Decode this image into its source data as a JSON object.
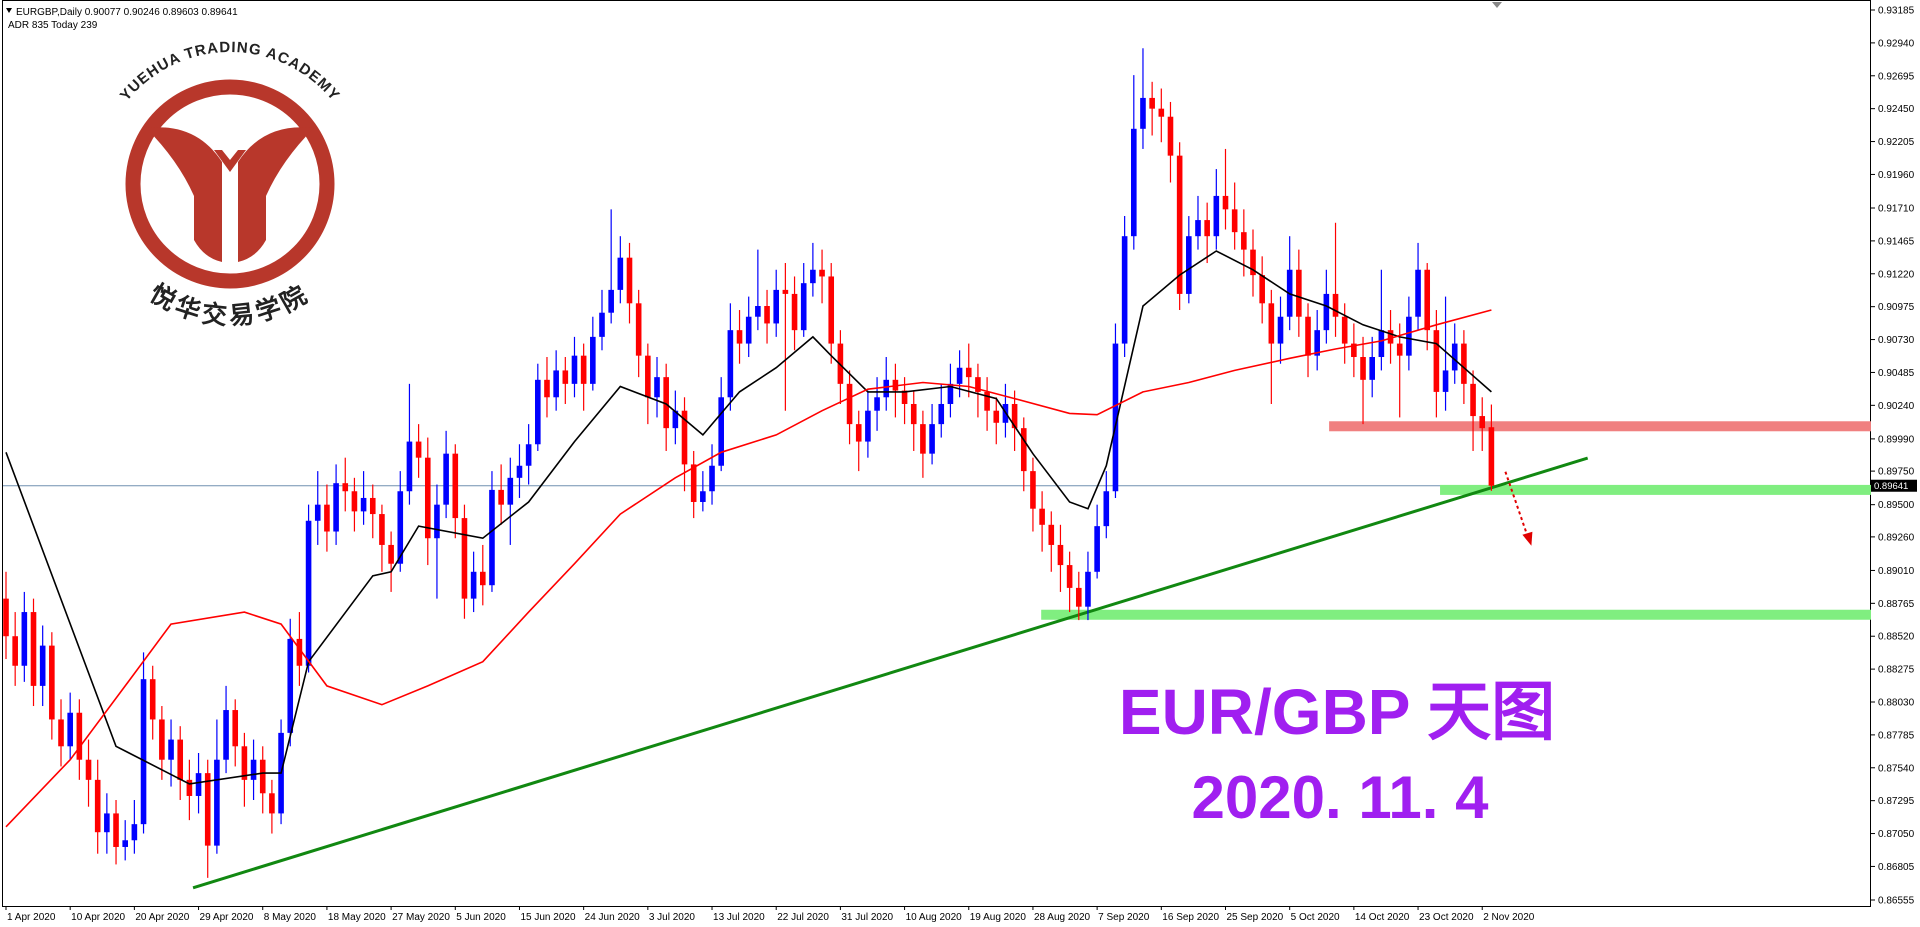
{
  "chart_data": {
    "type": "candlestick",
    "header": "EURGBP,Daily 0.90077 0.90246 0.89603 0.89641",
    "subheader": "ADR 835  Today 239",
    "title": "EUR/GBP 天图",
    "subtitle": "2020. 11. 4",
    "logo": {
      "name_en": "YUEHUA TRADING ACADEMY",
      "name_cn": "悦华交易学院"
    },
    "up_color": "#0000ff",
    "down_color": "#ff0000",
    "xlim": [
      0,
      203.4
    ],
    "ylim": [
      0.86555,
      0.93185
    ],
    "xticks": [
      {
        "value": 0,
        "label": "1 Apr 2020"
      },
      {
        "value": 7,
        "label": "10 Apr 2020"
      },
      {
        "value": 14,
        "label": "20 Apr 2020"
      },
      {
        "value": 21,
        "label": "29 Apr 2020"
      },
      {
        "value": 28,
        "label": "8 May 2020"
      },
      {
        "value": 35,
        "label": "18 May 2020"
      },
      {
        "value": 42,
        "label": "27 May 2020"
      },
      {
        "value": 49,
        "label": "5 Jun 2020"
      },
      {
        "value": 56,
        "label": "15 Jun 2020"
      },
      {
        "value": 63,
        "label": "24 Jun 2020"
      },
      {
        "value": 70,
        "label": "3 Jul 2020"
      },
      {
        "value": 77,
        "label": "13 Jul 2020"
      },
      {
        "value": 84,
        "label": "22 Jul 2020"
      },
      {
        "value": 91,
        "label": "31 Jul 2020"
      },
      {
        "value": 98,
        "label": "10 Aug 2020"
      },
      {
        "value": 105,
        "label": "19 Aug 2020"
      },
      {
        "value": 112,
        "label": "28 Aug 2020"
      },
      {
        "value": 119,
        "label": "7 Sep 2020"
      },
      {
        "value": 126,
        "label": "16 Sep 2020"
      },
      {
        "value": 133,
        "label": "25 Sep 2020"
      },
      {
        "value": 140,
        "label": "5 Oct 2020"
      },
      {
        "value": 147,
        "label": "14 Oct 2020"
      },
      {
        "value": 154,
        "label": "23 Oct 2020"
      },
      {
        "value": 161,
        "label": "2 Nov 2020"
      }
    ],
    "yticks": [
      0.93185,
      {
        "value": 0.9294,
        "label": "0.92940"
      },
      0.92695,
      {
        "value": 0.9245,
        "label": "0.92450"
      },
      0.92205,
      {
        "value": 0.9196,
        "label": "0.91960"
      },
      {
        "value": 0.9171,
        "label": "0.91710"
      },
      0.91465,
      {
        "value": 0.9122,
        "label": "0.91220"
      },
      0.90975,
      {
        "value": 0.9073,
        "label": "0.90730"
      },
      0.90485,
      {
        "value": 0.9024,
        "label": "0.90240"
      },
      {
        "value": 0.8999,
        "label": "0.89990"
      },
      {
        "value": 0.8975,
        "label": "0.89750"
      },
      {
        "value": 0.895,
        "label": "0.89500"
      },
      {
        "value": 0.8926,
        "label": "0.89260"
      },
      {
        "value": 0.8901,
        "label": "0.89010"
      },
      0.88765,
      {
        "value": 0.8852,
        "label": "0.88520"
      },
      0.88275,
      {
        "value": 0.8803,
        "label": "0.88030"
      },
      0.87785,
      {
        "value": 0.8754,
        "label": "0.87540"
      },
      0.87295,
      {
        "value": 0.8705,
        "label": "0.87050"
      },
      0.86805,
      0.86555
    ],
    "candles": [
      [
        0.888,
        0.89,
        0.8835,
        0.8852
      ],
      [
        0.8852,
        0.887,
        0.8815,
        0.883
      ],
      [
        0.883,
        0.8885,
        0.8818,
        0.887
      ],
      [
        0.887,
        0.888,
        0.88,
        0.8815
      ],
      [
        0.8815,
        0.886,
        0.88,
        0.8845
      ],
      [
        0.8845,
        0.8855,
        0.8775,
        0.879
      ],
      [
        0.879,
        0.8805,
        0.8755,
        0.877
      ],
      [
        0.877,
        0.881,
        0.876,
        0.8795
      ],
      [
        0.8795,
        0.8805,
        0.8745,
        0.876
      ],
      [
        0.876,
        0.8775,
        0.8725,
        0.8745
      ],
      [
        0.8745,
        0.876,
        0.869,
        0.8706
      ],
      [
        0.8706,
        0.8735,
        0.869,
        0.872
      ],
      [
        0.872,
        0.873,
        0.8682,
        0.8695
      ],
      [
        0.8695,
        0.8715,
        0.8685,
        0.87
      ],
      [
        0.87,
        0.873,
        0.869,
        0.8712
      ],
      [
        0.8712,
        0.884,
        0.8705,
        0.882
      ],
      [
        0.882,
        0.883,
        0.8775,
        0.879
      ],
      [
        0.879,
        0.88,
        0.8745,
        0.876
      ],
      [
        0.876,
        0.879,
        0.874,
        0.8775
      ],
      [
        0.8775,
        0.8785,
        0.873,
        0.8745
      ],
      [
        0.8745,
        0.876,
        0.8715,
        0.8733
      ],
      [
        0.8733,
        0.8765,
        0.872,
        0.875
      ],
      [
        0.875,
        0.876,
        0.8672,
        0.8696
      ],
      [
        0.8696,
        0.879,
        0.869,
        0.876
      ],
      [
        0.876,
        0.8815,
        0.875,
        0.8797
      ],
      [
        0.8797,
        0.8805,
        0.8755,
        0.877
      ],
      [
        0.877,
        0.878,
        0.8725,
        0.8745
      ],
      [
        0.8745,
        0.8775,
        0.873,
        0.876
      ],
      [
        0.876,
        0.877,
        0.872,
        0.8735
      ],
      [
        0.8735,
        0.8745,
        0.8705,
        0.872
      ],
      [
        0.872,
        0.879,
        0.8712,
        0.878
      ],
      [
        0.878,
        0.8865,
        0.877,
        0.885
      ],
      [
        0.885,
        0.887,
        0.8815,
        0.883
      ],
      [
        0.883,
        0.895,
        0.8825,
        0.8938
      ],
      [
        0.8938,
        0.8975,
        0.892,
        0.895
      ],
      [
        0.895,
        0.8965,
        0.8915,
        0.893
      ],
      [
        0.893,
        0.898,
        0.892,
        0.8966
      ],
      [
        0.8966,
        0.8985,
        0.8945,
        0.896
      ],
      [
        0.896,
        0.897,
        0.893,
        0.8945
      ],
      [
        0.8945,
        0.8975,
        0.8935,
        0.8955
      ],
      [
        0.8955,
        0.8965,
        0.8925,
        0.8943
      ],
      [
        0.8943,
        0.895,
        0.89,
        0.892
      ],
      [
        0.892,
        0.893,
        0.8885,
        0.8906
      ],
      [
        0.8906,
        0.8975,
        0.89,
        0.896
      ],
      [
        0.896,
        0.904,
        0.895,
        0.8997
      ],
      [
        0.8997,
        0.901,
        0.897,
        0.8985
      ],
      [
        0.8985,
        0.9,
        0.8905,
        0.8925
      ],
      [
        0.8925,
        0.8965,
        0.888,
        0.895
      ],
      [
        0.895,
        0.9005,
        0.894,
        0.8988
      ],
      [
        0.8988,
        0.8995,
        0.8925,
        0.894
      ],
      [
        0.894,
        0.895,
        0.8865,
        0.888
      ],
      [
        0.888,
        0.8915,
        0.887,
        0.89
      ],
      [
        0.89,
        0.892,
        0.8875,
        0.889
      ],
      [
        0.889,
        0.8975,
        0.8885,
        0.8961
      ],
      [
        0.8961,
        0.898,
        0.8935,
        0.895
      ],
      [
        0.895,
        0.8985,
        0.892,
        0.897
      ],
      [
        0.897,
        0.8995,
        0.8955,
        0.8979
      ],
      [
        0.8979,
        0.901,
        0.8965,
        0.8995
      ],
      [
        0.8995,
        0.9055,
        0.899,
        0.9043
      ],
      [
        0.9043,
        0.906,
        0.9015,
        0.903
      ],
      [
        0.903,
        0.9065,
        0.902,
        0.905
      ],
      [
        0.905,
        0.906,
        0.9025,
        0.904
      ],
      [
        0.904,
        0.9075,
        0.903,
        0.9061
      ],
      [
        0.9061,
        0.907,
        0.902,
        0.904
      ],
      [
        0.904,
        0.909,
        0.9035,
        0.9075
      ],
      [
        0.9075,
        0.911,
        0.9065,
        0.9093
      ],
      [
        0.9093,
        0.917,
        0.9085,
        0.911
      ],
      [
        0.911,
        0.915,
        0.91,
        0.9134
      ],
      [
        0.9134,
        0.9145,
        0.9085,
        0.91
      ],
      [
        0.91,
        0.911,
        0.9045,
        0.9061
      ],
      [
        0.9061,
        0.907,
        0.901,
        0.903
      ],
      [
        0.903,
        0.906,
        0.9015,
        0.9045
      ],
      [
        0.9045,
        0.9055,
        0.899,
        0.9007
      ],
      [
        0.9007,
        0.9035,
        0.8995,
        0.902
      ],
      [
        0.902,
        0.903,
        0.896,
        0.898
      ],
      [
        0.898,
        0.899,
        0.894,
        0.8952
      ],
      [
        0.8952,
        0.8975,
        0.8945,
        0.896
      ],
      [
        0.896,
        0.8995,
        0.895,
        0.8979
      ],
      [
        0.8979,
        0.9045,
        0.8975,
        0.903
      ],
      [
        0.903,
        0.91,
        0.902,
        0.908
      ],
      [
        0.908,
        0.9095,
        0.9055,
        0.907
      ],
      [
        0.907,
        0.9105,
        0.906,
        0.909
      ],
      [
        0.909,
        0.914,
        0.908,
        0.9098
      ],
      [
        0.9098,
        0.911,
        0.907,
        0.9085
      ],
      [
        0.9085,
        0.9125,
        0.9075,
        0.911
      ],
      [
        0.911,
        0.913,
        0.902,
        0.9107
      ],
      [
        0.9107,
        0.912,
        0.9065,
        0.908
      ],
      [
        0.908,
        0.913,
        0.9075,
        0.9115
      ],
      [
        0.9115,
        0.9145,
        0.9105,
        0.9125
      ],
      [
        0.9125,
        0.914,
        0.91,
        0.912
      ],
      [
        0.912,
        0.913,
        0.9055,
        0.907
      ],
      [
        0.907,
        0.908,
        0.9025,
        0.904
      ],
      [
        0.904,
        0.905,
        0.8995,
        0.901
      ],
      [
        0.901,
        0.902,
        0.8975,
        0.8997
      ],
      [
        0.8997,
        0.9035,
        0.8985,
        0.902
      ],
      [
        0.902,
        0.9045,
        0.9005,
        0.903
      ],
      [
        0.903,
        0.906,
        0.902,
        0.9043
      ],
      [
        0.9043,
        0.9055,
        0.9015,
        0.9035
      ],
      [
        0.9035,
        0.9045,
        0.901,
        0.9025
      ],
      [
        0.9025,
        0.9035,
        0.899,
        0.901
      ],
      [
        0.901,
        0.902,
        0.897,
        0.8988
      ],
      [
        0.8988,
        0.9025,
        0.898,
        0.901
      ],
      [
        0.901,
        0.904,
        0.9,
        0.9025
      ],
      [
        0.9025,
        0.9055,
        0.9015,
        0.904
      ],
      [
        0.904,
        0.9065,
        0.903,
        0.9052
      ],
      [
        0.9052,
        0.907,
        0.903,
        0.9045
      ],
      [
        0.9045,
        0.9055,
        0.9015,
        0.9034
      ],
      [
        0.9034,
        0.9045,
        0.9005,
        0.902
      ],
      [
        0.902,
        0.903,
        0.8995,
        0.9011
      ],
      [
        0.9011,
        0.904,
        0.9,
        0.9025
      ],
      [
        0.9025,
        0.9035,
        0.899,
        0.9007
      ],
      [
        0.9007,
        0.9015,
        0.896,
        0.8975
      ],
      [
        0.8975,
        0.8985,
        0.893,
        0.8947
      ],
      [
        0.8947,
        0.896,
        0.8915,
        0.8935
      ],
      [
        0.8935,
        0.8945,
        0.89,
        0.892
      ],
      [
        0.892,
        0.8935,
        0.8885,
        0.8905
      ],
      [
        0.8905,
        0.8915,
        0.887,
        0.8888
      ],
      [
        0.8888,
        0.89,
        0.8864,
        0.8874
      ],
      [
        0.8874,
        0.8915,
        0.8864,
        0.89
      ],
      [
        0.89,
        0.895,
        0.8895,
        0.8934
      ],
      [
        0.8934,
        0.8975,
        0.8925,
        0.896
      ],
      [
        0.896,
        0.9085,
        0.8955,
        0.907
      ],
      [
        0.907,
        0.9165,
        0.906,
        0.915
      ],
      [
        0.915,
        0.927,
        0.914,
        0.923
      ],
      [
        0.923,
        0.929,
        0.9215,
        0.9253
      ],
      [
        0.9253,
        0.9265,
        0.9225,
        0.9245
      ],
      [
        0.9245,
        0.926,
        0.922,
        0.9239
      ],
      [
        0.9239,
        0.925,
        0.919,
        0.921
      ],
      [
        0.921,
        0.922,
        0.9095,
        0.9107
      ],
      [
        0.9107,
        0.9165,
        0.91,
        0.915
      ],
      [
        0.915,
        0.918,
        0.914,
        0.9162
      ],
      [
        0.9162,
        0.9175,
        0.913,
        0.915
      ],
      [
        0.915,
        0.92,
        0.914,
        0.918
      ],
      [
        0.918,
        0.9215,
        0.9155,
        0.917
      ],
      [
        0.917,
        0.919,
        0.914,
        0.9153
      ],
      [
        0.9153,
        0.917,
        0.912,
        0.914
      ],
      [
        0.914,
        0.9155,
        0.9105,
        0.9121
      ],
      [
        0.9121,
        0.9135,
        0.9085,
        0.91
      ],
      [
        0.91,
        0.911,
        0.9025,
        0.907
      ],
      [
        0.907,
        0.9105,
        0.9055,
        0.909
      ],
      [
        0.909,
        0.915,
        0.908,
        0.9125
      ],
      [
        0.9125,
        0.914,
        0.9075,
        0.909
      ],
      [
        0.909,
        0.91,
        0.9045,
        0.9061
      ],
      [
        0.9061,
        0.9095,
        0.905,
        0.908
      ],
      [
        0.908,
        0.9125,
        0.907,
        0.9107
      ],
      [
        0.9107,
        0.916,
        0.9075,
        0.909
      ],
      [
        0.909,
        0.91,
        0.9055,
        0.907
      ],
      [
        0.907,
        0.9085,
        0.9045,
        0.906
      ],
      [
        0.906,
        0.9075,
        0.901,
        0.9043
      ],
      [
        0.9043,
        0.9075,
        0.903,
        0.906
      ],
      [
        0.906,
        0.9125,
        0.905,
        0.908
      ],
      [
        0.908,
        0.9095,
        0.9055,
        0.907
      ],
      [
        0.907,
        0.9085,
        0.9015,
        0.9061
      ],
      [
        0.9061,
        0.9105,
        0.905,
        0.909
      ],
      [
        0.909,
        0.9145,
        0.908,
        0.9125
      ],
      [
        0.9125,
        0.913,
        0.9065,
        0.908
      ],
      [
        0.908,
        0.9095,
        0.9015,
        0.9034
      ],
      [
        0.9034,
        0.9105,
        0.902,
        0.905
      ],
      [
        0.905,
        0.9085,
        0.904,
        0.907
      ],
      [
        0.907,
        0.908,
        0.9025,
        0.904
      ],
      [
        0.904,
        0.905,
        0.899,
        0.9016
      ],
      [
        0.9016,
        0.903,
        0.899,
        0.9007
      ],
      [
        0.90077,
        0.90246,
        0.89603,
        0.89641
      ]
    ],
    "moving_averages": [
      {
        "color": "#000000",
        "x": [
          0,
          12,
          20,
          28,
          30,
          33,
          40,
          42,
          45,
          52,
          57,
          62,
          67,
          72,
          76,
          80,
          84,
          88,
          90,
          94,
          98,
          103,
          108,
          112,
          116,
          118,
          120,
          124,
          128,
          132,
          136,
          140,
          144,
          148,
          152,
          156,
          159,
          162
        ],
        "values": [
          0.8989,
          0.877,
          0.8742,
          0.875,
          0.875,
          0.8833,
          0.8897,
          0.89,
          0.8934,
          0.8925,
          0.8952,
          0.8997,
          0.9038,
          0.9025,
          0.9002,
          0.9034,
          0.9052,
          0.9075,
          0.9061,
          0.9034,
          0.9034,
          0.9038,
          0.9029,
          0.8988,
          0.8952,
          0.8947,
          0.8979,
          0.9098,
          0.9121,
          0.9139,
          0.9125,
          0.9107,
          0.9098,
          0.9084,
          0.9075,
          0.907,
          0.9052,
          0.9034
        ]
      },
      {
        "color": "#ff0000",
        "x": [
          0,
          7,
          13,
          18,
          26,
          30,
          35,
          41,
          46,
          52,
          57,
          62,
          67,
          73,
          78,
          84,
          89,
          94,
          100,
          105,
          110,
          116,
          119,
          124,
          129,
          134,
          140,
          145,
          150,
          156,
          162
        ],
        "values": [
          0.871,
          0.876,
          0.8815,
          0.8861,
          0.887,
          0.8861,
          0.8815,
          0.8801,
          0.8815,
          0.8833,
          0.887,
          0.8906,
          0.8943,
          0.897,
          0.8989,
          0.9002,
          0.902,
          0.9036,
          0.9041,
          0.9038,
          0.9029,
          0.9018,
          0.9017,
          0.9034,
          0.9041,
          0.905,
          0.9059,
          0.9066,
          0.9072,
          0.9084,
          0.9095
        ]
      }
    ],
    "current_price": 0.89641,
    "price_line_color": "#7090b0",
    "zones": [
      {
        "price": 0.90084,
        "from": 144.3,
        "color": "#f08080"
      },
      {
        "price": 0.8961,
        "from": 156.4,
        "color": "#80ee80"
      },
      {
        "price": 0.8868,
        "from": 112.9,
        "color": "#80ee80"
      }
    ],
    "trendline": {
      "x": [
        20.4,
        172.5
      ],
      "values": [
        0.86646,
        0.89847
      ],
      "color": "#118811"
    }
  }
}
